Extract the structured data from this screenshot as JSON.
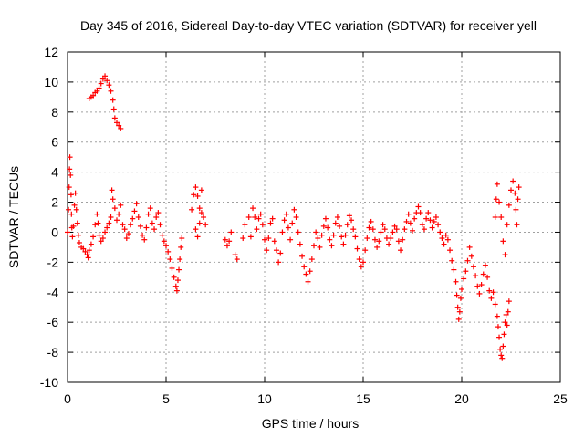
{
  "chart_data": {
    "type": "scatter",
    "title": "Day 345 of 2016, Sidereal Day-to-day VTEC variation (SDTVAR) for receiver yell",
    "xlabel": "GPS time / hours",
    "ylabel": "SDTVAR / TECUs",
    "xlim": [
      0,
      25
    ],
    "ylim": [
      -10,
      12
    ],
    "xticks": [
      0,
      5,
      10,
      15,
      20,
      25
    ],
    "xtick_labels": [
      "0",
      "5",
      "10",
      "15",
      "20",
      "25"
    ],
    "yticks": [
      -10,
      -8,
      -6,
      -4,
      -2,
      0,
      2,
      4,
      6,
      8,
      10,
      12
    ],
    "ytick_labels": [
      "-10",
      "-8",
      "-6",
      "-4",
      "-2",
      "0",
      "2",
      "4",
      "6",
      "8",
      "10",
      "12"
    ],
    "grid": true,
    "marker": "+",
    "marker_color": "#ff0000",
    "series": [
      {
        "name": "SDTVAR",
        "points": [
          [
            0.0,
            0.0
          ],
          [
            0.05,
            1.5
          ],
          [
            0.08,
            3.0
          ],
          [
            0.1,
            4.2
          ],
          [
            0.12,
            5.0
          ],
          [
            0.15,
            3.8
          ],
          [
            0.18,
            2.5
          ],
          [
            0.2,
            1.2
          ],
          [
            0.22,
            0.3
          ],
          [
            0.25,
            -0.3
          ],
          [
            0.3,
            0.4
          ],
          [
            0.35,
            1.8
          ],
          [
            0.4,
            2.6
          ],
          [
            0.45,
            1.5
          ],
          [
            0.5,
            0.6
          ],
          [
            0.55,
            -0.2
          ],
          [
            0.6,
            -0.7
          ],
          [
            0.7,
            -1.0
          ],
          [
            0.8,
            -1.1
          ],
          [
            0.9,
            -1.3
          ],
          [
            1.0,
            -1.5
          ],
          [
            1.05,
            -1.7
          ],
          [
            1.1,
            -1.2
          ],
          [
            1.2,
            -0.8
          ],
          [
            1.3,
            -0.3
          ],
          [
            1.4,
            0.5
          ],
          [
            1.5,
            1.2
          ],
          [
            1.55,
            0.6
          ],
          [
            1.6,
            -0.2
          ],
          [
            1.7,
            -0.6
          ],
          [
            1.8,
            -0.4
          ],
          [
            1.9,
            0.0
          ],
          [
            2.0,
            0.3
          ],
          [
            2.1,
            0.6
          ],
          [
            2.2,
            1.0
          ],
          [
            2.25,
            2.8
          ],
          [
            2.3,
            2.2
          ],
          [
            2.4,
            1.6
          ],
          [
            2.5,
            0.8
          ],
          [
            2.6,
            1.2
          ],
          [
            2.7,
            1.8
          ],
          [
            2.8,
            0.5
          ],
          [
            2.9,
            0.2
          ],
          [
            3.0,
            -0.4
          ],
          [
            3.1,
            -0.1
          ],
          [
            3.2,
            0.5
          ],
          [
            3.3,
            0.9
          ],
          [
            3.4,
            1.4
          ],
          [
            3.5,
            1.9
          ],
          [
            3.6,
            1.0
          ],
          [
            3.7,
            0.4
          ],
          [
            3.8,
            -0.2
          ],
          [
            3.9,
            -0.5
          ],
          [
            4.0,
            0.3
          ],
          [
            4.1,
            1.2
          ],
          [
            4.2,
            1.6
          ],
          [
            4.3,
            0.6
          ],
          [
            4.4,
            0.2
          ],
          [
            4.5,
            1.0
          ],
          [
            4.6,
            1.3
          ],
          [
            4.7,
            0.5
          ],
          [
            4.8,
            -0.2
          ],
          [
            4.9,
            -0.6
          ],
          [
            5.0,
            -0.9
          ],
          [
            5.1,
            -1.3
          ],
          [
            5.2,
            -1.8
          ],
          [
            5.3,
            -2.4
          ],
          [
            5.4,
            -3.0
          ],
          [
            5.5,
            -3.6
          ],
          [
            5.55,
            -3.9
          ],
          [
            5.6,
            -3.2
          ],
          [
            5.65,
            -2.5
          ],
          [
            5.7,
            -1.8
          ],
          [
            5.75,
            -1.0
          ],
          [
            5.8,
            -0.4
          ],
          [
            1.1,
            8.9
          ],
          [
            1.2,
            9.0
          ],
          [
            1.3,
            9.1
          ],
          [
            1.4,
            9.3
          ],
          [
            1.5,
            9.4
          ],
          [
            1.6,
            9.6
          ],
          [
            1.7,
            9.9
          ],
          [
            1.8,
            10.2
          ],
          [
            1.9,
            10.4
          ],
          [
            2.0,
            10.1
          ],
          [
            2.1,
            9.8
          ],
          [
            2.2,
            9.4
          ],
          [
            2.3,
            8.8
          ],
          [
            2.35,
            8.2
          ],
          [
            2.4,
            7.6
          ],
          [
            2.5,
            7.3
          ],
          [
            2.6,
            7.1
          ],
          [
            2.7,
            6.9
          ],
          [
            6.3,
            1.5
          ],
          [
            6.4,
            2.5
          ],
          [
            6.5,
            3.0
          ],
          [
            6.6,
            2.4
          ],
          [
            6.7,
            1.6
          ],
          [
            6.8,
            2.8
          ],
          [
            6.9,
            1.0
          ],
          [
            7.0,
            0.5
          ],
          [
            6.5,
            0.2
          ],
          [
            6.6,
            -0.3
          ],
          [
            6.7,
            0.6
          ],
          [
            6.8,
            1.3
          ],
          [
            8.0,
            -0.5
          ],
          [
            8.1,
            -0.9
          ],
          [
            8.2,
            -0.6
          ],
          [
            8.3,
            0.0
          ],
          [
            8.5,
            -1.5
          ],
          [
            8.6,
            -1.8
          ],
          [
            8.9,
            -0.4
          ],
          [
            9.0,
            0.5
          ],
          [
            9.2,
            1.0
          ],
          [
            9.3,
            -0.3
          ],
          [
            9.4,
            1.6
          ],
          [
            9.5,
            1.0
          ],
          [
            9.6,
            0.2
          ],
          [
            9.7,
            0.9
          ],
          [
            9.8,
            1.2
          ],
          [
            9.9,
            0.5
          ],
          [
            10.0,
            -0.5
          ],
          [
            10.1,
            -1.2
          ],
          [
            10.2,
            -0.4
          ],
          [
            10.3,
            0.6
          ],
          [
            10.4,
            0.9
          ],
          [
            10.5,
            -0.6
          ],
          [
            10.6,
            -1.2
          ],
          [
            10.7,
            -2.0
          ],
          [
            10.8,
            -1.4
          ],
          [
            10.9,
            0.0
          ],
          [
            11.0,
            0.8
          ],
          [
            11.1,
            1.2
          ],
          [
            11.2,
            0.3
          ],
          [
            11.3,
            -0.5
          ],
          [
            11.4,
            0.6
          ],
          [
            11.5,
            1.5
          ],
          [
            11.6,
            1.0
          ],
          [
            11.7,
            0.0
          ],
          [
            11.8,
            -0.8
          ],
          [
            11.9,
            -1.6
          ],
          [
            12.0,
            -2.3
          ],
          [
            12.1,
            -2.8
          ],
          [
            12.2,
            -3.3
          ],
          [
            12.3,
            -2.6
          ],
          [
            12.4,
            -1.8
          ],
          [
            12.5,
            -0.9
          ],
          [
            12.6,
            0.0
          ],
          [
            12.7,
            -0.4
          ],
          [
            12.8,
            -1.0
          ],
          [
            12.9,
            -0.2
          ],
          [
            13.0,
            0.4
          ],
          [
            13.1,
            0.9
          ],
          [
            13.2,
            0.3
          ],
          [
            13.3,
            -0.5
          ],
          [
            13.4,
            -0.9
          ],
          [
            13.5,
            -0.2
          ],
          [
            13.6,
            0.6
          ],
          [
            13.7,
            1.0
          ],
          [
            13.8,
            0.4
          ],
          [
            13.9,
            -0.3
          ],
          [
            14.0,
            -0.8
          ],
          [
            14.1,
            -0.2
          ],
          [
            14.2,
            0.5
          ],
          [
            14.3,
            1.1
          ],
          [
            14.4,
            0.8
          ],
          [
            14.5,
            0.2
          ],
          [
            14.6,
            -0.3
          ],
          [
            14.7,
            -1.1
          ],
          [
            14.8,
            -1.8
          ],
          [
            14.9,
            -2.3
          ],
          [
            15.0,
            -2.0
          ],
          [
            15.1,
            -1.2
          ],
          [
            15.2,
            -0.4
          ],
          [
            15.3,
            0.3
          ],
          [
            15.4,
            0.7
          ],
          [
            15.5,
            0.2
          ],
          [
            15.6,
            -0.5
          ],
          [
            15.7,
            -1.0
          ],
          [
            15.8,
            -0.6
          ],
          [
            15.9,
            0.0
          ],
          [
            16.0,
            0.5
          ],
          [
            16.1,
            0.2
          ],
          [
            16.2,
            -0.4
          ],
          [
            16.3,
            -0.8
          ],
          [
            16.4,
            -0.4
          ],
          [
            16.5,
            0.0
          ],
          [
            16.6,
            0.4
          ],
          [
            16.7,
            0.2
          ],
          [
            16.8,
            -0.6
          ],
          [
            16.9,
            -1.2
          ],
          [
            17.0,
            -0.5
          ],
          [
            17.1,
            0.2
          ],
          [
            17.2,
            0.7
          ],
          [
            17.3,
            1.2
          ],
          [
            17.4,
            0.6
          ],
          [
            17.5,
            0.1
          ],
          [
            17.6,
            0.9
          ],
          [
            17.7,
            1.3
          ],
          [
            17.8,
            1.7
          ],
          [
            17.9,
            1.3
          ],
          [
            18.0,
            0.5
          ],
          [
            18.1,
            0.2
          ],
          [
            18.2,
            0.9
          ],
          [
            18.3,
            1.3
          ],
          [
            18.4,
            0.8
          ],
          [
            18.5,
            0.3
          ],
          [
            18.6,
            0.7
          ],
          [
            18.7,
            1.0
          ],
          [
            18.8,
            0.5
          ],
          [
            18.9,
            0.0
          ],
          [
            19.0,
            -0.4
          ],
          [
            19.1,
            -0.8
          ],
          [
            19.2,
            -0.2
          ],
          [
            19.3,
            -0.5
          ],
          [
            19.4,
            -1.2
          ],
          [
            19.5,
            -1.9
          ],
          [
            19.6,
            -2.5
          ],
          [
            19.7,
            -3.3
          ],
          [
            19.75,
            -4.2
          ],
          [
            19.8,
            -5.0
          ],
          [
            19.85,
            -5.8
          ],
          [
            19.9,
            -5.3
          ],
          [
            19.95,
            -4.4
          ],
          [
            20.0,
            -3.8
          ],
          [
            20.1,
            -3.1
          ],
          [
            20.2,
            -2.6
          ],
          [
            20.3,
            -1.9
          ],
          [
            20.4,
            -1.0
          ],
          [
            20.5,
            -1.6
          ],
          [
            20.6,
            -2.3
          ],
          [
            20.7,
            -2.9
          ],
          [
            20.8,
            -3.6
          ],
          [
            20.9,
            -4.1
          ],
          [
            21.0,
            -3.5
          ],
          [
            21.1,
            -2.8
          ],
          [
            21.2,
            -2.2
          ],
          [
            21.3,
            -3.0
          ],
          [
            21.4,
            -3.9
          ],
          [
            21.5,
            -4.4
          ],
          [
            21.6,
            -4.0
          ],
          [
            21.7,
            -4.8
          ],
          [
            21.8,
            -5.6
          ],
          [
            21.85,
            -6.3
          ],
          [
            21.9,
            -7.0
          ],
          [
            21.95,
            -7.8
          ],
          [
            22.0,
            -8.2
          ],
          [
            22.05,
            -8.4
          ],
          [
            22.1,
            -7.6
          ],
          [
            22.15,
            -6.8
          ],
          [
            22.2,
            -6.0
          ],
          [
            22.25,
            -5.5
          ],
          [
            22.3,
            -6.2
          ],
          [
            22.35,
            -5.3
          ],
          [
            22.4,
            -4.6
          ],
          [
            21.7,
            1.0
          ],
          [
            21.75,
            2.2
          ],
          [
            21.8,
            3.2
          ],
          [
            21.9,
            2.0
          ],
          [
            22.0,
            1.0
          ],
          [
            22.1,
            -0.6
          ],
          [
            22.2,
            -1.5
          ],
          [
            22.3,
            0.5
          ],
          [
            22.4,
            1.8
          ],
          [
            22.5,
            2.8
          ],
          [
            22.6,
            3.4
          ],
          [
            22.7,
            2.6
          ],
          [
            22.75,
            1.5
          ],
          [
            22.8,
            0.5
          ],
          [
            22.85,
            2.2
          ],
          [
            22.9,
            3.0
          ]
        ]
      }
    ]
  }
}
